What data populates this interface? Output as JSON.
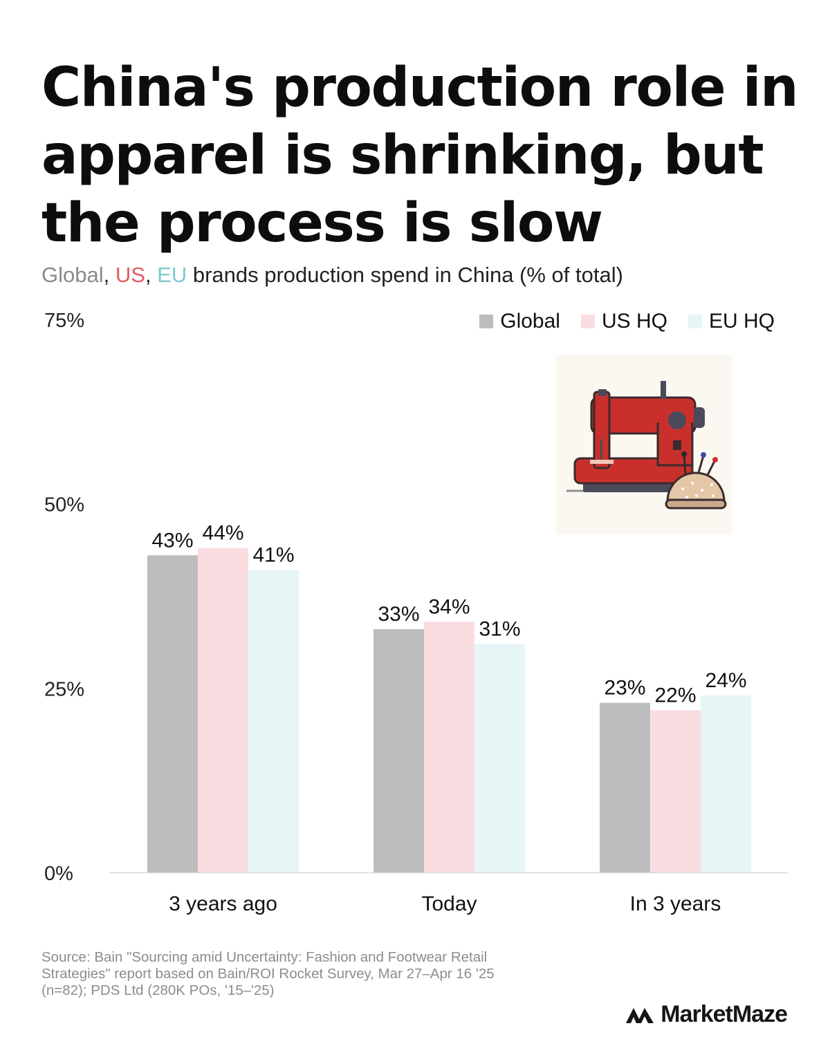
{
  "title": "China's production role in apparel is shrinking, but the process is slow",
  "subtitle": {
    "global": "Global",
    "sep1": ", ",
    "us": "US",
    "sep2": ", ",
    "eu": "EU",
    "rest": " brands production spend in China (% of total)"
  },
  "legend": {
    "global": "Global",
    "us": "US HQ",
    "eu": "EU HQ"
  },
  "colors": {
    "global": "#bdbdbd",
    "us": "#fadde1",
    "eu": "#e6f5f6",
    "subtitle_global": "#8a8a8a",
    "subtitle_us": "#e25b63",
    "subtitle_eu": "#7fc9cc"
  },
  "chart_data": {
    "type": "bar",
    "categories": [
      "3 years ago",
      "Today",
      "In 3 years"
    ],
    "series": [
      {
        "name": "Global",
        "values": [
          43,
          33,
          23
        ],
        "color": "#bdbdbd"
      },
      {
        "name": "US HQ",
        "values": [
          44,
          34,
          22
        ],
        "color": "#fadde1"
      },
      {
        "name": "EU HQ",
        "values": [
          41,
          31,
          24
        ],
        "color": "#e6f5f6"
      }
    ],
    "value_labels": [
      [
        "43%",
        "33%",
        "23%"
      ],
      [
        "44%",
        "34%",
        "22%"
      ],
      [
        "41%",
        "31%",
        "24%"
      ]
    ],
    "y_ticks": [
      0,
      25,
      50,
      75
    ],
    "y_tick_labels": [
      "0%",
      "25%",
      "50%",
      "75%"
    ],
    "ylim": [
      0,
      75
    ],
    "grid": false,
    "legend_position": "top-right"
  },
  "illustration": "sewing-machine-with-pincushion",
  "footer": {
    "source_line1": "Source: Bain \"Sourcing amid Uncertainty: Fashion and Footwear Retail",
    "source_line2": "Strategies\" report based on Bain/ROI Rocket Survey, Mar 27–Apr 16 '25",
    "source_line3": "(n=82); PDS Ltd (280K POs, '15–'25)"
  },
  "brand": "MarketMaze"
}
